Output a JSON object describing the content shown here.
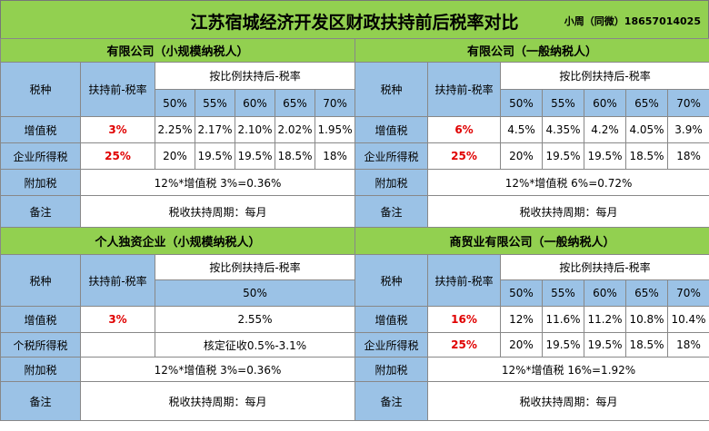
{
  "title": "江苏宿城经济开发区财政扶持前后税率对比",
  "contact": "小周（同微）18657014025",
  "blocks": [
    {
      "heading": "有限公司（小规模纳税人）",
      "col_tax": "税种",
      "col_before": "扶持前-税率",
      "col_after": "按比例扶持后-税率",
      "ratios": [
        "50%",
        "55%",
        "60%",
        "65%",
        "70%"
      ],
      "rows": [
        {
          "name": "增值税",
          "before": "3%",
          "after": [
            "2.25%",
            "2.17%",
            "2.10%",
            "2.02%",
            "1.95%"
          ]
        },
        {
          "name": "企业所得税",
          "before": "25%",
          "after": [
            "20%",
            "19.5%",
            "19.5%",
            "18.5%",
            "18%"
          ]
        }
      ],
      "surcharge": {
        "name": "附加税",
        "text": "12%*增值税 3%=0.36%"
      },
      "note": {
        "name": "备注",
        "text": "税收扶持周期：每月"
      }
    },
    {
      "heading": "有限公司（一般纳税人）",
      "col_tax": "税种",
      "col_before": "扶持前-税率",
      "col_after": "按比例扶持后-税率",
      "ratios": [
        "50%",
        "55%",
        "60%",
        "65%",
        "70%"
      ],
      "rows": [
        {
          "name": "增值税",
          "before": "6%",
          "after": [
            "4.5%",
            "4.35%",
            "4.2%",
            "4.05%",
            "3.9%"
          ]
        },
        {
          "name": "企业所得税",
          "before": "25%",
          "after": [
            "20%",
            "19.5%",
            "19.5%",
            "18.5%",
            "18%"
          ]
        }
      ],
      "surcharge": {
        "name": "附加税",
        "text": "12%*增值税 6%=0.72%"
      },
      "note": {
        "name": "备注",
        "text": "税收扶持周期：每月"
      }
    },
    {
      "heading": "个人独资企业（小规模纳税人）",
      "col_tax": "税种",
      "col_before": "扶持前-税率",
      "col_after": "按比例扶持后-税率",
      "ratios": [
        "50%"
      ],
      "rows": [
        {
          "name": "增值税",
          "before": "3%",
          "after": [
            "2.55%"
          ]
        },
        {
          "name": "个税所得税",
          "before": null,
          "after": [
            "核定征收0.5%-3.1%"
          ]
        }
      ],
      "surcharge": {
        "name": "附加税",
        "text": "12%*增值税 3%=0.36%"
      },
      "note": {
        "name": "备注",
        "text": "税收扶持周期：每月"
      }
    },
    {
      "heading": "商贸业有限公司（一般纳税人）",
      "col_tax": "税种",
      "col_before": "扶持前-税率",
      "col_after": "按比例扶持后-税率",
      "ratios": [
        "50%",
        "55%",
        "60%",
        "65%",
        "70%"
      ],
      "rows": [
        {
          "name": "增值税",
          "before": "16%",
          "after": [
            "12%",
            "11.6%",
            "11.2%",
            "10.8%",
            "10.4%"
          ]
        },
        {
          "name": "企业所得税",
          "before": "25%",
          "after": [
            "20%",
            "19.5%",
            "19.5%",
            "18.5%",
            "18%"
          ]
        }
      ],
      "surcharge": {
        "name": "附加税",
        "text": "12%*增值税 16%=1.92%"
      },
      "note": {
        "name": "备注",
        "text": "税收扶持周期：每月"
      }
    }
  ]
}
